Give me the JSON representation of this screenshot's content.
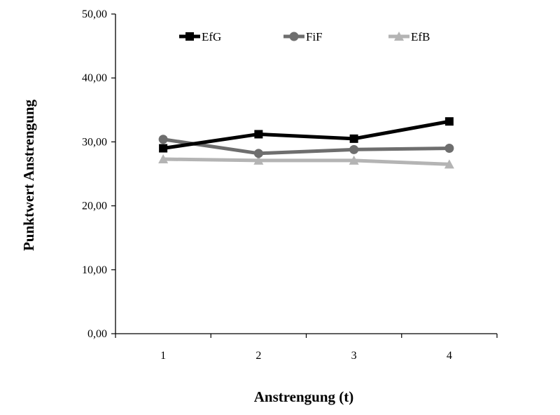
{
  "chart_data": {
    "type": "line",
    "title": "",
    "xlabel": "Anstrengung (t)",
    "ylabel": "Punktwert Anstrengung",
    "categories": [
      "1",
      "2",
      "3",
      "4"
    ],
    "yticks": [
      "0,00",
      "10,00",
      "20,00",
      "30,00",
      "40,00",
      "50,00"
    ],
    "ylim": [
      0,
      50
    ],
    "grid": false,
    "legend_position": "top",
    "series": [
      {
        "name": "EfG",
        "values": [
          29.0,
          31.2,
          30.5,
          33.2
        ],
        "color": "#000000",
        "marker": "square"
      },
      {
        "name": "FiF",
        "values": [
          30.4,
          28.2,
          28.8,
          29.0
        ],
        "color": "#6e6e6e",
        "marker": "circle"
      },
      {
        "name": "EfB",
        "values": [
          27.3,
          27.1,
          27.1,
          26.5
        ],
        "color": "#b4b4b4",
        "marker": "triangle"
      }
    ]
  }
}
